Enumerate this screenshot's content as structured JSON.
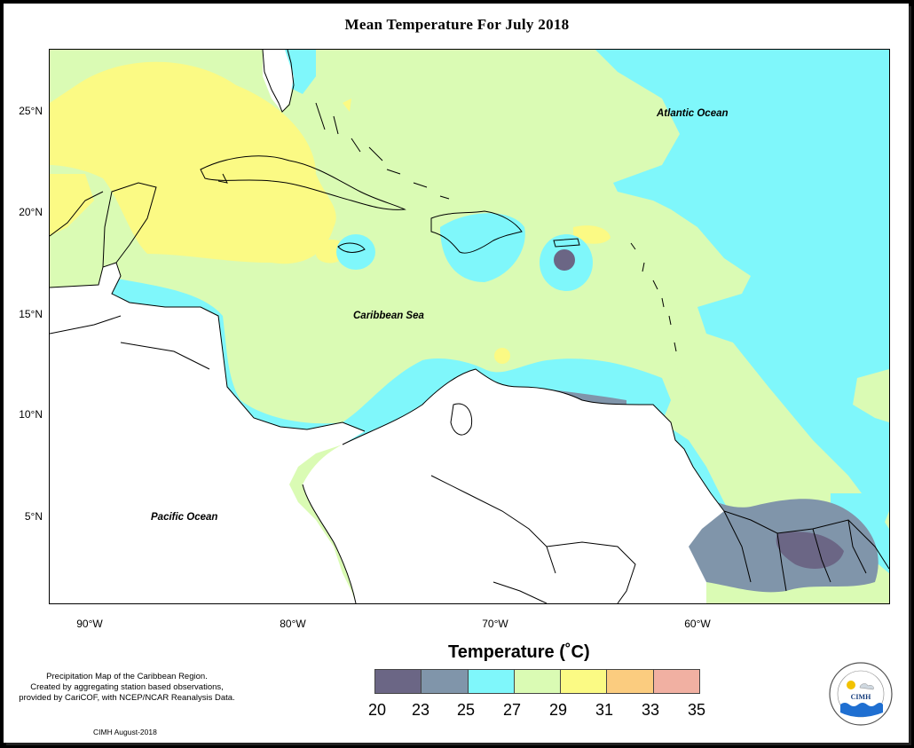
{
  "title": "Mean Temperature For July 2018",
  "oceans": {
    "atlantic": "Atlantic Ocean",
    "caribbean": "Caribbean Sea",
    "pacific": "Pacific Ocean"
  },
  "lat_ticks": [
    "25°N",
    "20°N",
    "15°N",
    "10°N",
    "5°N"
  ],
  "lon_ticks": [
    "90°W",
    "80°W",
    "70°W",
    "60°W"
  ],
  "legend": {
    "title": "Temperature (˚C)",
    "breaks": [
      "20",
      "23",
      "25",
      "27",
      "29",
      "31",
      "33",
      "35"
    ],
    "colors": [
      "#6b6685",
      "#8095aa",
      "#7ff7fb",
      "#dafbb4",
      "#fbfa84",
      "#fbcc7f",
      "#f1b0a2"
    ]
  },
  "note": {
    "line1": "Precipitation Map of the Caribbean Region.",
    "line2": "Created by aggregating station based observations,",
    "line3": "provided by CariCOF, with NCEP/NCAR Reanalysis Data."
  },
  "credit": "CIMH August-2018",
  "logo": {
    "text": "CIMH",
    "ring_text": "Caribbean Institute for Meteorology and Hydrology"
  },
  "colors": {
    "c20_23": "#6b6685",
    "c23_25": "#8095aa",
    "c25_27": "#7ff7fb",
    "c27_29": "#dafbb4",
    "c29_31": "#fbfa84"
  }
}
